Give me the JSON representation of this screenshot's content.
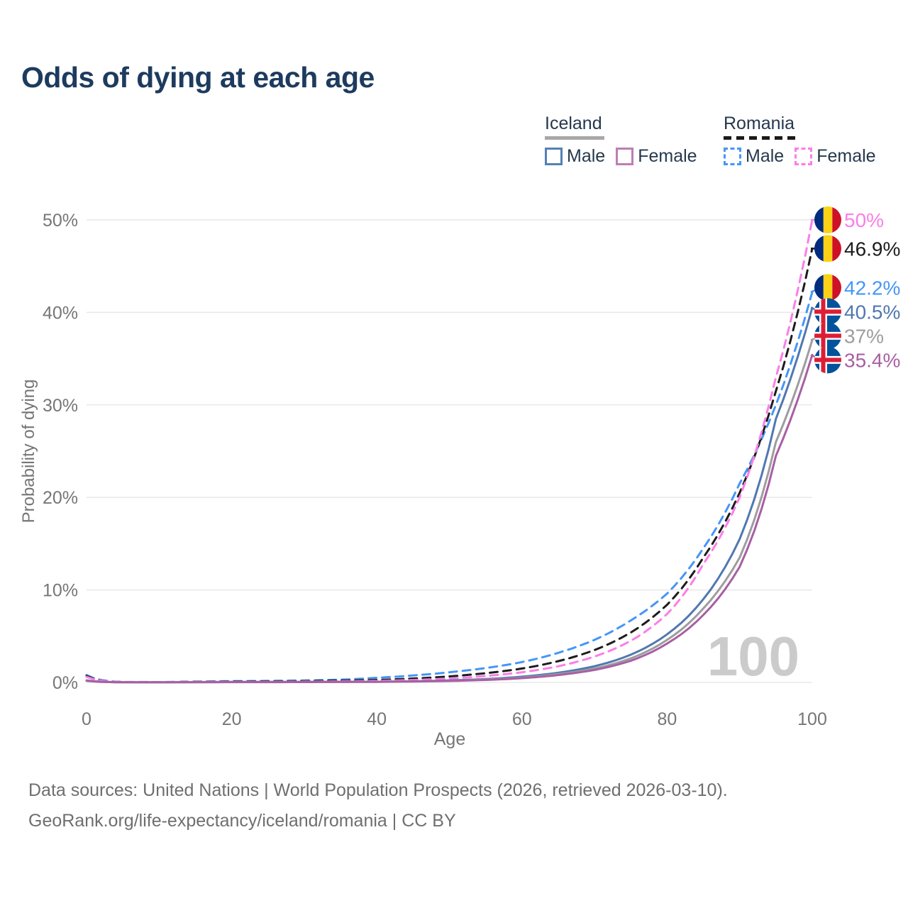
{
  "title": "Odds of dying at each age",
  "legend": {
    "iceland": {
      "label": "Iceland",
      "male_label": "Male",
      "female_label": "Female"
    },
    "romania": {
      "label": "Romania",
      "male_label": "Male",
      "female_label": "Female"
    }
  },
  "source": {
    "line1": "Data sources: United Nations | World Population Prospects (2026, retrieved 2026-03-10).",
    "line2": "GeoRank.org/life-expectancy/iceland/romania | CC BY"
  },
  "colors": {
    "title": "#1d3b5e",
    "legend_text": "#26384d",
    "axis_text": "#767676",
    "gridline": "#e9e9e9",
    "watermark": "#cbcbcb",
    "source_text": "#6f6f6f",
    "iceland_underline": "#a8a8a8",
    "romania_underline": "#1a1a1a",
    "iceland_male_box": "#5580b5",
    "iceland_female_box": "#bd7eb4",
    "romania_male_box": "#4596f7",
    "romania_female_box": "#fc7ce8",
    "flag_romania_blue": "#002B7F",
    "flag_romania_yellow": "#FCD116",
    "flag_romania_red": "#CE1126",
    "flag_iceland_blue": "#02529C",
    "flag_iceland_red": "#DC1E35",
    "flag_iceland_white": "#FFFFFF"
  },
  "chart_data": {
    "type": "line",
    "title": "Odds of dying at each age",
    "xlabel": "Age",
    "ylabel": "Probability of dying",
    "xlim": [
      0,
      100
    ],
    "ylim_percent": [
      0,
      50
    ],
    "grid": "horizontal-only",
    "legend_position": "top-right",
    "age_counter": "100",
    "x_ticks": [
      {
        "value": 0,
        "label": "0"
      },
      {
        "value": 20,
        "label": "20"
      },
      {
        "value": 40,
        "label": "40"
      },
      {
        "value": 60,
        "label": "60"
      },
      {
        "value": 80,
        "label": "80"
      },
      {
        "value": 100,
        "label": "100"
      }
    ],
    "y_ticks": [
      {
        "value": 0,
        "label": "0%"
      },
      {
        "value": 10,
        "label": "10%"
      },
      {
        "value": 20,
        "label": "20%"
      },
      {
        "value": 30,
        "label": "30%"
      },
      {
        "value": 40,
        "label": "40%"
      },
      {
        "value": 50,
        "label": "50%"
      }
    ],
    "ages": [
      0,
      5,
      10,
      15,
      20,
      25,
      30,
      35,
      40,
      45,
      50,
      55,
      60,
      65,
      70,
      75,
      80,
      85,
      90,
      95,
      100
    ],
    "series": [
      {
        "id": "romania-male",
        "country": "Romania",
        "group": "Male",
        "line": "dashed",
        "color": "#4596f7",
        "flag": "romania",
        "end_label": "42.2%",
        "values_percent": [
          0.8,
          0.05,
          0.04,
          0.09,
          0.14,
          0.16,
          0.2,
          0.3,
          0.5,
          0.75,
          1.1,
          1.55,
          2.2,
          3.2,
          4.6,
          6.7,
          9.6,
          14.5,
          21.5,
          30.0,
          42.2
        ]
      },
      {
        "id": "romania-combined",
        "country": "Romania",
        "group": "Combined",
        "line": "dashed",
        "color": "#1c1c1c",
        "flag": "romania",
        "end_label": "46.9%",
        "values_percent": [
          0.7,
          0.04,
          0.03,
          0.07,
          0.1,
          0.12,
          0.15,
          0.2,
          0.27,
          0.42,
          0.65,
          1.0,
          1.5,
          2.3,
          3.5,
          5.4,
          8.4,
          13.5,
          20.5,
          31.5,
          46.9
        ]
      },
      {
        "id": "romania-female",
        "country": "Romania",
        "group": "Female",
        "line": "dashed",
        "color": "#fb7ee7",
        "flag": "romania",
        "end_label": "50%",
        "values_percent": [
          0.6,
          0.04,
          0.03,
          0.05,
          0.06,
          0.07,
          0.09,
          0.12,
          0.16,
          0.26,
          0.42,
          0.7,
          1.1,
          1.75,
          2.8,
          4.5,
          7.4,
          12.8,
          20.0,
          33.0,
          50.0
        ]
      },
      {
        "id": "iceland-male",
        "country": "Iceland",
        "group": "Male",
        "line": "solid",
        "color": "#5078b0",
        "flag": "iceland",
        "end_label": "40.5%",
        "values_percent": [
          0.22,
          0.02,
          0.015,
          0.04,
          0.06,
          0.06,
          0.065,
          0.07,
          0.08,
          0.13,
          0.22,
          0.37,
          0.62,
          1.05,
          1.75,
          3.0,
          5.2,
          9.0,
          15.5,
          28.5,
          40.5
        ]
      },
      {
        "id": "iceland-combined",
        "country": "Iceland",
        "group": "Combined",
        "line": "solid",
        "color": "#9d9d9d",
        "flag": "iceland",
        "end_label": "37%",
        "values_percent": [
          0.2,
          0.015,
          0.012,
          0.03,
          0.045,
          0.045,
          0.05,
          0.06,
          0.07,
          0.11,
          0.18,
          0.31,
          0.52,
          0.9,
          1.5,
          2.6,
          4.6,
          8.0,
          13.5,
          26.0,
          37.0
        ]
      },
      {
        "id": "iceland-female",
        "country": "Iceland",
        "group": "Female",
        "line": "solid",
        "color": "#a85fa4",
        "flag": "iceland",
        "end_label": "35.4%",
        "values_percent": [
          0.18,
          0.012,
          0.01,
          0.02,
          0.03,
          0.03,
          0.04,
          0.05,
          0.06,
          0.1,
          0.16,
          0.27,
          0.46,
          0.8,
          1.35,
          2.35,
          4.2,
          7.3,
          12.5,
          24.5,
          35.4
        ]
      }
    ]
  }
}
